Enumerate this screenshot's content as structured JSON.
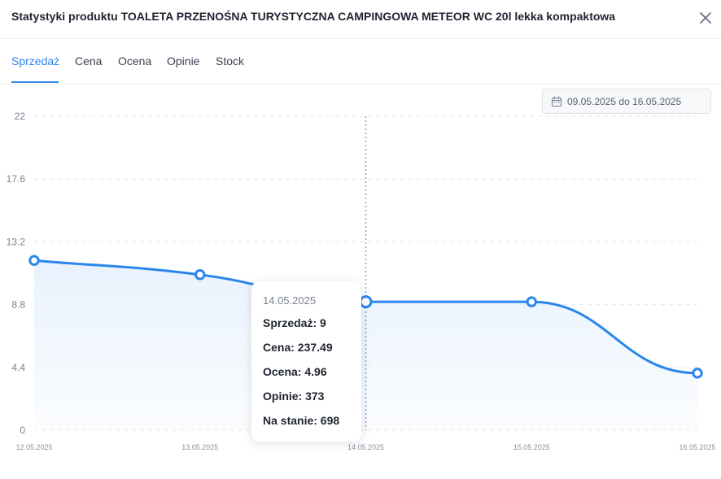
{
  "modal": {
    "title": "Statystyki produktu TOALETA PRZENOŚNA TURYSTYCZNA CAMPINGOWA METEOR WC 20l lekka kompaktowa"
  },
  "tabs": [
    {
      "label": "Sprzedaż",
      "active": true
    },
    {
      "label": "Cena",
      "active": false
    },
    {
      "label": "Ocena",
      "active": false
    },
    {
      "label": "Opinie",
      "active": false
    },
    {
      "label": "Stock",
      "active": false
    }
  ],
  "date_range": {
    "label": "09.05.2025 do 16.05.2025",
    "icon": "calendar-icon"
  },
  "colors": {
    "accent": "#2b86ea",
    "line": "#2b86ea",
    "fill": "#e8f2fd",
    "grid": "#e3e6eb"
  },
  "chart_data": {
    "type": "area",
    "x": [
      "12.05.2025",
      "13.05.2025",
      "14.05.2025",
      "15.05.2025",
      "16.05.2025"
    ],
    "series": [
      {
        "values": [
          11.9,
          10.9,
          9,
          9,
          4
        ]
      }
    ],
    "y_ticks": [
      "22",
      "17.6",
      "13.2",
      "8.8",
      "4.4",
      "0"
    ],
    "ylim": [
      0,
      22
    ],
    "grid": true,
    "hover_index": 2
  },
  "tooltip": {
    "date": "14.05.2025",
    "rows": [
      "Sprzedaż: 9",
      "Cena: 237.49",
      "Ocena: 4.96",
      "Opinie: 373",
      "Na stanie: 698"
    ]
  }
}
